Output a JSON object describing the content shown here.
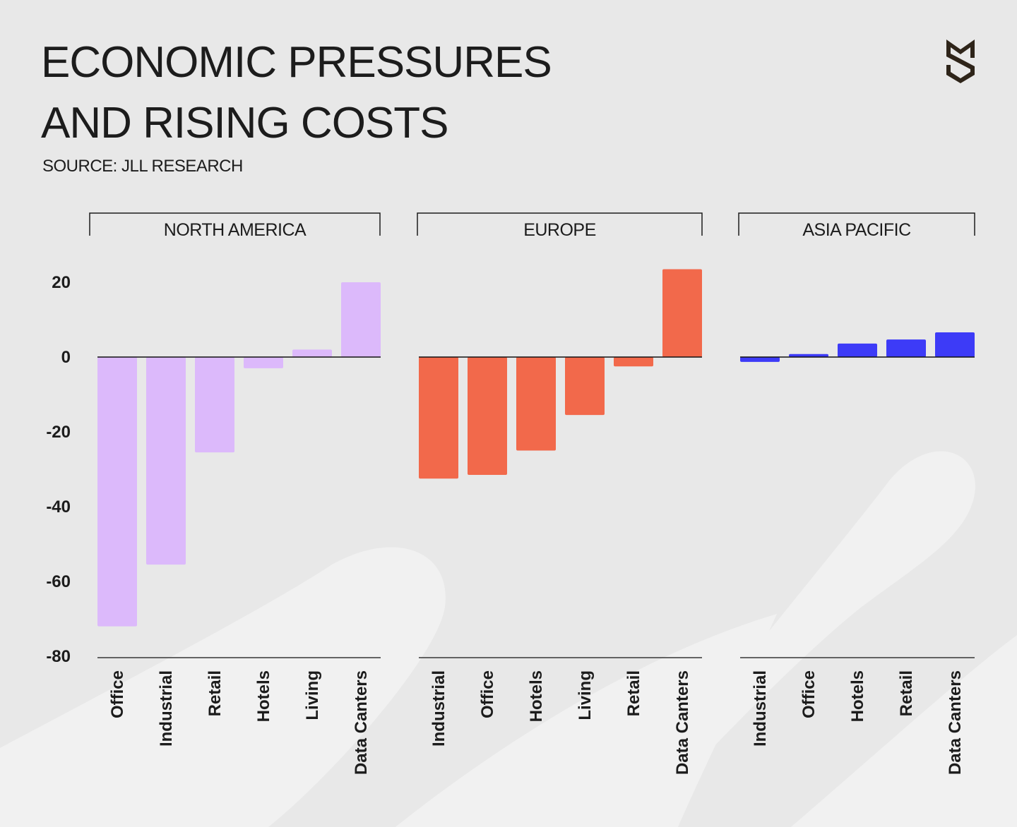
{
  "title_lines": [
    "ECONOMIC PRESSURES",
    "AND RISING COSTS"
  ],
  "source": "SOURCE: JLL RESEARCH",
  "logo": {
    "icon": "s-shield-logo",
    "color": "#2e2419"
  },
  "chart_data": {
    "type": "bar",
    "ylim": [
      -80,
      20
    ],
    "yticks": [
      20,
      0,
      -20,
      -40,
      -60,
      -80
    ],
    "grid": false,
    "panels": [
      {
        "name": "NORTH AMERICA",
        "color": "#dcb9fb",
        "categories": [
          "Office",
          "Industrial",
          "Retail",
          "Hotels",
          "Living",
          "Data Canters"
        ],
        "values": [
          -72,
          -55.5,
          -25.5,
          -3,
          2,
          20
        ]
      },
      {
        "name": "EUROPE",
        "color": "#f2694b",
        "categories": [
          "Industrial",
          "Office",
          "Hotels",
          "Living",
          "Retail",
          "Data Canters"
        ],
        "values": [
          -32.5,
          -31.5,
          -25,
          -15.5,
          -2.5,
          23.5
        ]
      },
      {
        "name": "ASIA PACIFIC",
        "color": "#3d3bf7",
        "categories": [
          "Industrial",
          "Office",
          "Hotels",
          "Retail",
          "Data Canters"
        ],
        "values": [
          -1.3,
          0.8,
          3.6,
          4.7,
          6.6
        ]
      }
    ]
  }
}
